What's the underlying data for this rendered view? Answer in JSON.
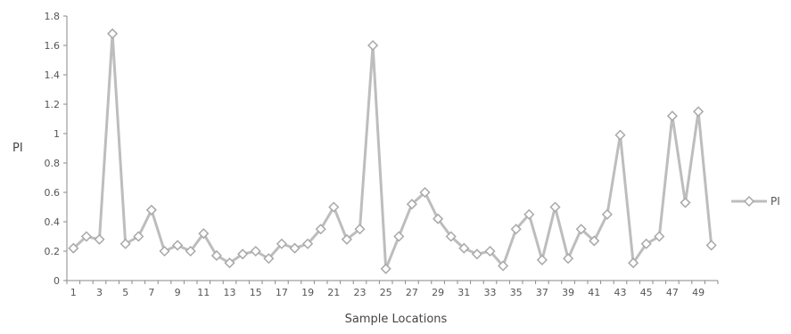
{
  "chart_data": {
    "type": "line",
    "title": "",
    "xlabel": "Sample Locations",
    "ylabel": "PI",
    "ylim": [
      0,
      1.8
    ],
    "y_ticks": [
      "0",
      "0.2",
      "0.4",
      "0.6",
      "0.8",
      "1",
      "1.2",
      "1.4",
      "1.6",
      "1.8"
    ],
    "x_ticks": [
      "1",
      "3",
      "5",
      "7",
      "9",
      "11",
      "13",
      "15",
      "17",
      "19",
      "21",
      "23",
      "25",
      "27",
      "29",
      "31",
      "33",
      "35",
      "37",
      "39",
      "41",
      "43",
      "45",
      "47",
      "49"
    ],
    "x": [
      1,
      2,
      3,
      4,
      5,
      6,
      7,
      8,
      9,
      10,
      11,
      12,
      13,
      14,
      15,
      16,
      17,
      18,
      19,
      20,
      21,
      22,
      23,
      24,
      25,
      26,
      27,
      28,
      29,
      30,
      31,
      32,
      33,
      34,
      35,
      36,
      37,
      38,
      39,
      40,
      41,
      42,
      43,
      44,
      45,
      46,
      47,
      48,
      49,
      50
    ],
    "series": [
      {
        "name": "PI",
        "color": "#bdbdbd",
        "marker": "diamond",
        "values": [
          0.22,
          0.3,
          0.28,
          1.68,
          0.25,
          0.3,
          0.48,
          0.2,
          0.24,
          0.2,
          0.32,
          0.17,
          0.12,
          0.18,
          0.2,
          0.15,
          0.25,
          0.22,
          0.25,
          0.35,
          0.5,
          0.28,
          0.35,
          1.6,
          0.08,
          0.3,
          0.52,
          0.6,
          0.42,
          0.3,
          0.22,
          0.18,
          0.2,
          0.1,
          0.35,
          0.45,
          0.14,
          0.5,
          0.15,
          0.35,
          0.27,
          0.45,
          0.99,
          0.12,
          0.25,
          0.3,
          1.12,
          0.53,
          1.15,
          0.24
        ]
      }
    ],
    "legend": {
      "placement": "right",
      "entries": [
        "PI"
      ]
    },
    "grid": false
  }
}
